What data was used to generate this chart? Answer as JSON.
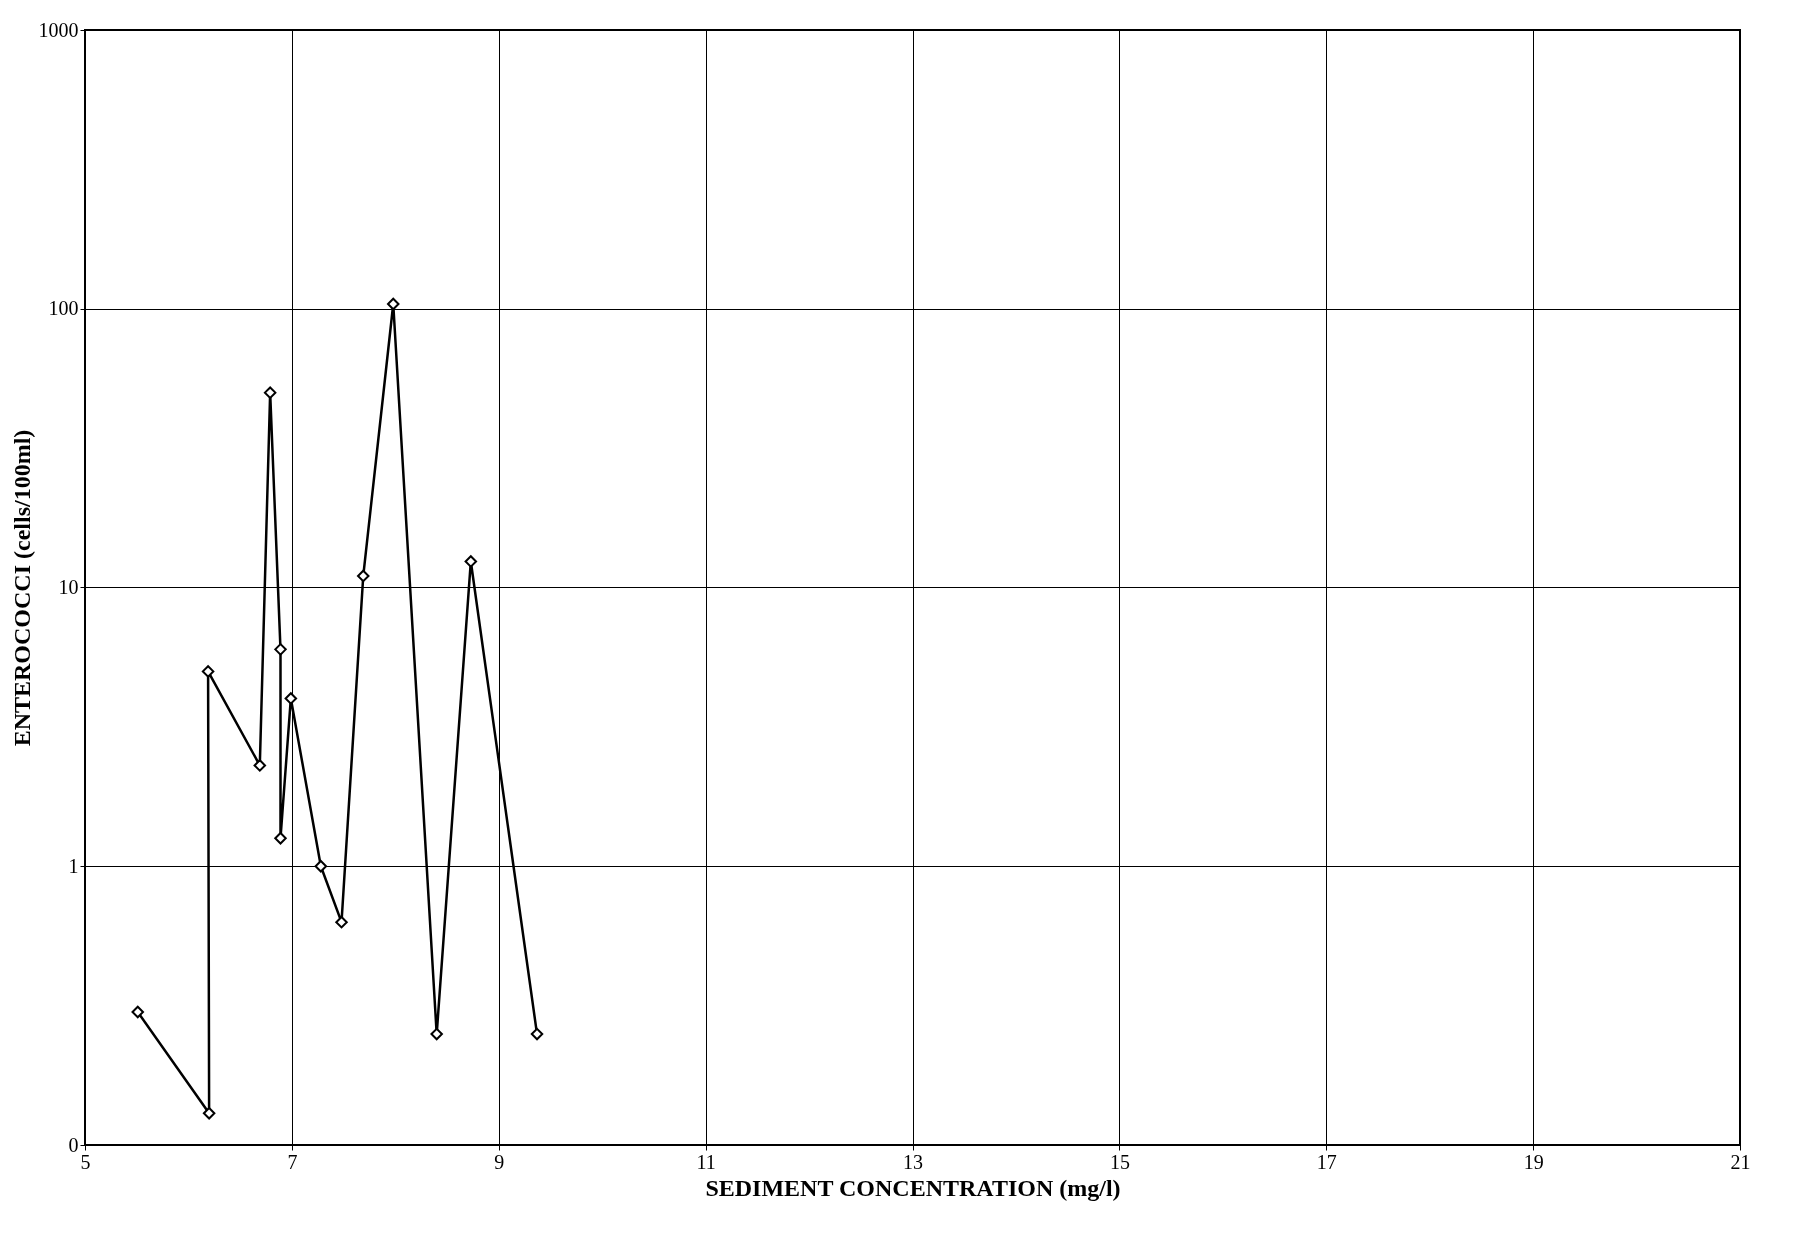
{
  "chart_data": {
    "type": "line",
    "xlabel": "SEDIMENT CONCENTRATION (mg/l)",
    "ylabel": "ENTEROCOCCI (cells/100ml)",
    "x": [
      5.51,
      6.2,
      6.19,
      6.69,
      6.79,
      6.89,
      6.89,
      6.99,
      7.28,
      7.48,
      7.69,
      7.98,
      8.4,
      8.73,
      9.37
    ],
    "series": [
      {
        "color": "#000000",
        "values": [
          0.3,
          0.13,
          5,
          2.3,
          50,
          6,
          1.26,
          4,
          1,
          0.63,
          11,
          104,
          0.25,
          12.4,
          0.25
        ]
      }
    ],
    "xlim": [
      5,
      21
    ],
    "xticks": [
      5,
      7,
      9,
      11,
      13,
      15,
      17,
      19,
      21
    ],
    "ylim": [
      0.1,
      1000
    ],
    "yticks": [
      {
        "value": 0.1,
        "label": "0"
      },
      1,
      10,
      100,
      1000
    ],
    "log": "y",
    "grid": true,
    "marker": "diamond",
    "line_style": "solid"
  }
}
